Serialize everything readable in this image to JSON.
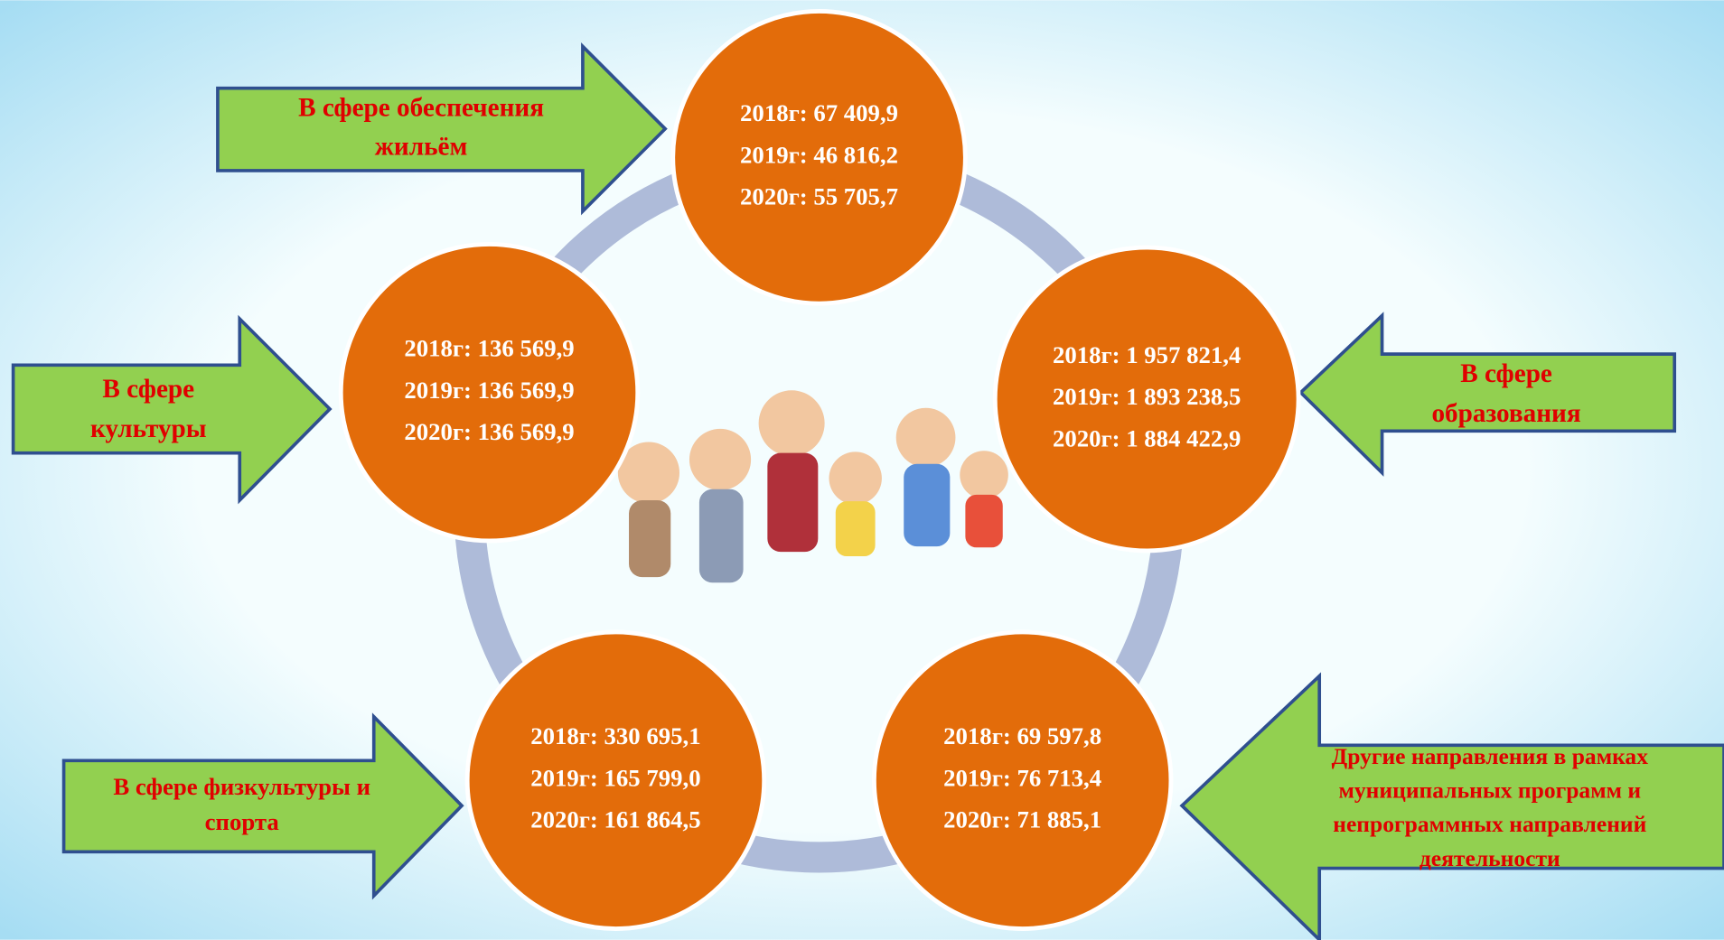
{
  "sectors": [
    {
      "label": [
        "В сфере обеспечения",
        "жильём"
      ],
      "lines": [
        "2018г: 67 409,9",
        "2019г: 46 816,2",
        "2020г: 55 705,7"
      ]
    },
    {
      "label": [
        "В сфере",
        "культуры"
      ],
      "lines": [
        "2018г: 136 569,9",
        "2019г: 136 569,9",
        "2020г: 136 569,9"
      ]
    },
    {
      "label": [
        "В сфере",
        "образования"
      ],
      "lines": [
        "2018г: 1 957 821,4",
        "2019г: 1 893 238,5",
        "2020г: 1 884 422,9"
      ]
    },
    {
      "label": [
        "В сфере физкультуры и",
        "спорта"
      ],
      "lines": [
        "2018г: 330 695,1",
        "2019г: 165 799,0",
        "2020г: 161 864,5"
      ]
    },
    {
      "label": [
        "Другие направления в рамках",
        "муниципальных программ и",
        "непрограммных направлений",
        "деятельности"
      ],
      "lines": [
        "2018г: 69 597,8",
        "2019г: 76 713,4",
        "2020г: 71 885,1"
      ]
    }
  ]
}
